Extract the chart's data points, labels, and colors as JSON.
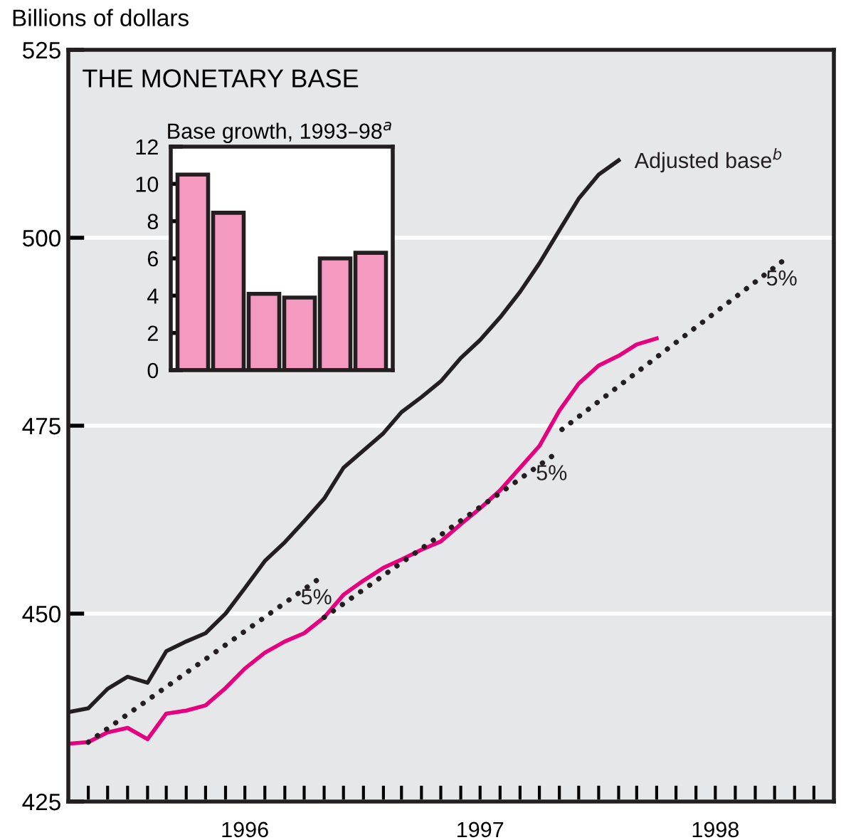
{
  "chart_data": [
    {
      "type": "line",
      "title": "THE MONETARY BASE",
      "ylabel": "Billions of dollars",
      "x": [
        "1995-10",
        "1995-11",
        "1995-12",
        "1996-01",
        "1996-02",
        "1996-03",
        "1996-04",
        "1996-05",
        "1996-06",
        "1996-07",
        "1996-08",
        "1996-09",
        "1996-10",
        "1996-11",
        "1996-12",
        "1997-01",
        "1997-02",
        "1997-03",
        "1997-04",
        "1997-05",
        "1997-06",
        "1997-07",
        "1997-08",
        "1997-09",
        "1997-10",
        "1997-11",
        "1997-12",
        "1998-01",
        "1998-02",
        "1998-03",
        "1998-04"
      ],
      "series": [
        {
          "name": "Adjusted base$^{b}$",
          "color": "#231f20",
          "line_style": "solid",
          "values": [
            436.9,
            437.4,
            440.0,
            441.6,
            440.8,
            445.0,
            446.3,
            447.4,
            450.0,
            453.4,
            457.0,
            459.5,
            462.3,
            465.3,
            469.4,
            471.7,
            474.0,
            476.8,
            478.8,
            480.9,
            484.0,
            486.4,
            489.4,
            492.8,
            496.6,
            501.0,
            505.2,
            508.4,
            510.3,
            null,
            null
          ]
        },
        {
          "color": "#e6007e",
          "line_style": "solid",
          "values": [
            432.7,
            432.9,
            434.2,
            434.8,
            433.3,
            436.7,
            437.1,
            437.8,
            440.1,
            442.7,
            444.8,
            446.3,
            447.4,
            449.5,
            452.5,
            454.4,
            456.1,
            457.2,
            458.5,
            459.6,
            461.9,
            464.0,
            466.4,
            469.4,
            472.3,
            477.0,
            480.6,
            483.0,
            484.3,
            485.8,
            486.6
          ]
        },
        {
          "name": "5%",
          "color": "#231f20",
          "line_style": "dotted",
          "x": [
            "1995-11-01",
            "1996-10-20"
          ],
          "values": [
            432.9,
            454.4
          ]
        },
        {
          "name": "5%",
          "color": "#231f20",
          "line_style": "dotted",
          "x": [
            "1996-11-01",
            "1997-10-20"
          ],
          "values": [
            449.5,
            470.9
          ]
        },
        {
          "name": "5%",
          "color": "#231f20",
          "line_style": "dotted",
          "x": [
            "1997-11-05",
            "1998-10-12"
          ],
          "values": [
            474.5,
            496.8
          ]
        }
      ],
      "xlim": [
        "1995-10-01",
        "1999-01-01"
      ],
      "ylim": [
        425,
        525
      ],
      "yticks": [
        425,
        450,
        475,
        500,
        525
      ],
      "xticks": [
        {
          "value": "1995-11-01",
          "label": null
        },
        {
          "value": "1995-12-01",
          "label": null
        },
        {
          "value": "1996-01-01",
          "label": null
        },
        {
          "value": "1996-02-01",
          "label": null
        },
        {
          "value": "1996-03-01",
          "label": null
        },
        {
          "value": "1996-04-01",
          "label": null
        },
        {
          "value": "1996-05-01",
          "label": null
        },
        {
          "value": "1996-06-01",
          "label": null
        },
        {
          "value": "1996-07-01",
          "label": "1996"
        },
        {
          "value": "1996-08-01",
          "label": null
        },
        {
          "value": "1996-09-01",
          "label": null
        },
        {
          "value": "1996-10-01",
          "label": null
        },
        {
          "value": "1996-11-01",
          "label": null
        },
        {
          "value": "1996-12-01",
          "label": null
        },
        {
          "value": "1997-01-01",
          "label": null
        },
        {
          "value": "1997-02-01",
          "label": null
        },
        {
          "value": "1997-03-01",
          "label": null
        },
        {
          "value": "1997-04-01",
          "label": null
        },
        {
          "value": "1997-05-01",
          "label": null
        },
        {
          "value": "1997-06-01",
          "label": null
        },
        {
          "value": "1997-07-01",
          "label": "1997"
        },
        {
          "value": "1997-08-01",
          "label": null
        },
        {
          "value": "1997-09-01",
          "label": null
        },
        {
          "value": "1997-10-01",
          "label": null
        },
        {
          "value": "1997-11-01",
          "label": null
        },
        {
          "value": "1997-12-01",
          "label": null
        },
        {
          "value": "1998-01-01",
          "label": null
        },
        {
          "value": "1998-02-01",
          "label": null
        },
        {
          "value": "1998-03-01",
          "label": null
        },
        {
          "value": "1998-04-01",
          "label": null
        },
        {
          "value": "1998-05-01",
          "label": null
        },
        {
          "value": "1998-06-01",
          "label": null
        },
        {
          "value": "1998-07-01",
          "label": "1998"
        },
        {
          "value": "1998-08-01",
          "label": null
        },
        {
          "value": "1998-09-01",
          "label": null
        },
        {
          "value": "1998-10-01",
          "label": null
        },
        {
          "value": "1998-11-01",
          "label": null
        },
        {
          "value": "1998-12-01",
          "label": null
        }
      ],
      "grid": "y",
      "legend": false,
      "marker": "none"
    },
    {
      "type": "bar",
      "title": "Base growth, 1993–98$^{a}$",
      "categories": [
        null,
        null,
        null,
        null,
        null,
        null
      ],
      "values": [
        10.5,
        8.45,
        4.1,
        3.9,
        6.0,
        6.3
      ],
      "color": "#f49ac1",
      "ylim": [
        0,
        12
      ],
      "yticks": [
        0,
        2,
        4,
        6,
        8,
        10,
        12
      ],
      "tick_labels": "y",
      "grid": false
    }
  ]
}
